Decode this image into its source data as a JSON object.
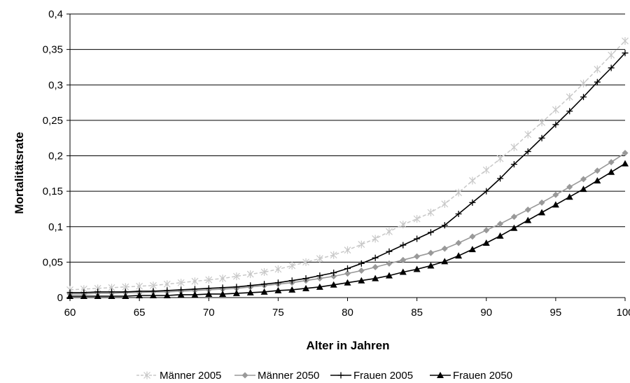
{
  "chart_data": {
    "type": "line",
    "xlabel": "Alter in Jahren",
    "ylabel": "Mortalitätsrate",
    "xlim": [
      60,
      100
    ],
    "ylim": [
      0,
      0.4
    ],
    "x_ticks": [
      60,
      65,
      70,
      75,
      80,
      85,
      90,
      95,
      100
    ],
    "y_ticks": [
      0,
      0.05,
      0.1,
      0.15,
      0.2,
      0.25,
      0.3,
      0.35,
      0.4
    ],
    "x_tick_labels": [
      "60",
      "65",
      "70",
      "75",
      "80",
      "85",
      "90",
      "95",
      "100"
    ],
    "y_tick_labels": [
      "0",
      "0,05",
      "0,1",
      "0,15",
      "0,2",
      "0,25",
      "0,3",
      "0,35",
      "0,4"
    ],
    "grid": "horizontal",
    "legend_position": "bottom",
    "x": [
      60,
      61,
      62,
      63,
      64,
      65,
      66,
      67,
      68,
      69,
      70,
      71,
      72,
      73,
      74,
      75,
      76,
      77,
      78,
      79,
      80,
      81,
      82,
      83,
      84,
      85,
      86,
      87,
      88,
      89,
      90,
      91,
      92,
      93,
      94,
      95,
      96,
      97,
      98,
      99,
      100
    ],
    "series": [
      {
        "name": "Männer 2005",
        "color": "#c8c8c8",
        "marker": "star",
        "line_style": "dashed",
        "values": [
          0.011,
          0.012,
          0.013,
          0.014,
          0.015,
          0.016,
          0.017,
          0.019,
          0.021,
          0.023,
          0.025,
          0.027,
          0.03,
          0.033,
          0.036,
          0.04,
          0.045,
          0.05,
          0.055,
          0.06,
          0.067,
          0.075,
          0.083,
          0.093,
          0.103,
          0.111,
          0.12,
          0.132,
          0.148,
          0.165,
          0.18,
          0.196,
          0.212,
          0.23,
          0.247,
          0.265,
          0.283,
          0.302,
          0.322,
          0.342,
          0.362
        ]
      },
      {
        "name": "Männer 2050",
        "color": "#999999",
        "marker": "diamond",
        "line_style": "solid",
        "values": [
          0.005,
          0.005,
          0.006,
          0.006,
          0.007,
          0.007,
          0.008,
          0.008,
          0.009,
          0.01,
          0.011,
          0.012,
          0.013,
          0.015,
          0.017,
          0.019,
          0.021,
          0.024,
          0.027,
          0.03,
          0.034,
          0.038,
          0.043,
          0.048,
          0.053,
          0.058,
          0.063,
          0.069,
          0.077,
          0.086,
          0.095,
          0.104,
          0.114,
          0.124,
          0.134,
          0.145,
          0.156,
          0.167,
          0.179,
          0.191,
          0.204
        ]
      },
      {
        "name": "Frauen 2005",
        "color": "#000000",
        "marker": "plus",
        "line_style": "solid",
        "values": [
          0.007,
          0.007,
          0.008,
          0.008,
          0.008,
          0.009,
          0.009,
          0.01,
          0.011,
          0.012,
          0.013,
          0.014,
          0.015,
          0.017,
          0.019,
          0.021,
          0.024,
          0.027,
          0.031,
          0.035,
          0.041,
          0.048,
          0.056,
          0.065,
          0.074,
          0.083,
          0.092,
          0.102,
          0.118,
          0.134,
          0.15,
          0.168,
          0.188,
          0.206,
          0.225,
          0.244,
          0.263,
          0.283,
          0.304,
          0.324,
          0.345
        ]
      },
      {
        "name": "Frauen 2050",
        "color": "#000000",
        "marker": "triangle",
        "line_style": "solid",
        "values": [
          0.002,
          0.002,
          0.002,
          0.002,
          0.002,
          0.003,
          0.003,
          0.003,
          0.004,
          0.004,
          0.005,
          0.005,
          0.006,
          0.007,
          0.008,
          0.01,
          0.011,
          0.013,
          0.015,
          0.018,
          0.021,
          0.024,
          0.027,
          0.031,
          0.036,
          0.04,
          0.045,
          0.051,
          0.059,
          0.068,
          0.077,
          0.087,
          0.098,
          0.109,
          0.12,
          0.131,
          0.142,
          0.153,
          0.165,
          0.177,
          0.189
        ]
      }
    ]
  }
}
